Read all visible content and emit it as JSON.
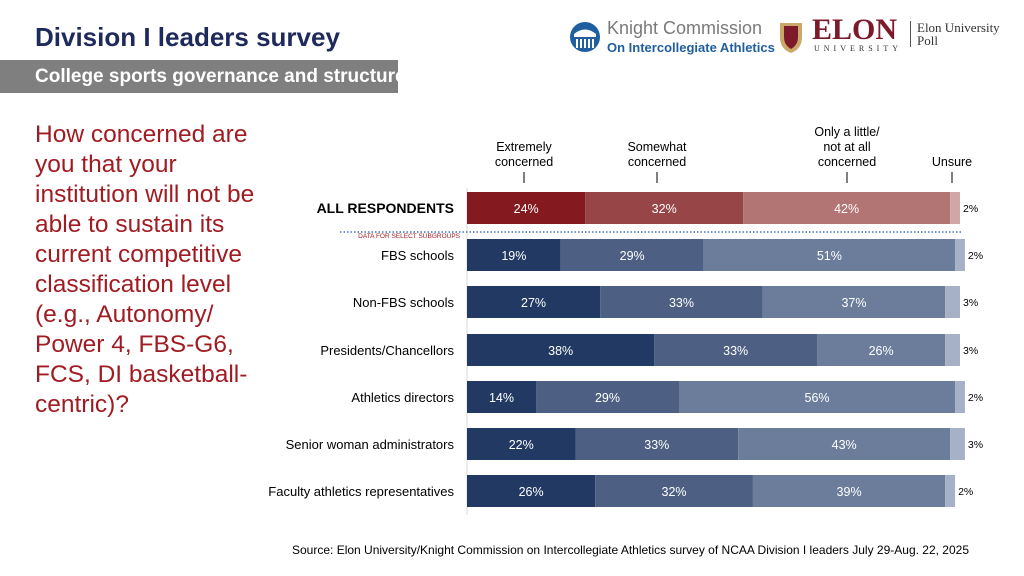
{
  "header": {
    "title": "Division I leaders survey",
    "subtitle": "College sports governance and structure"
  },
  "logos": {
    "knight_line1": "Knight Commission",
    "knight_line2": "On Intercollegiate Athletics",
    "elon_word": "ELON",
    "elon_univ": "UNIVERSITY",
    "elon_poll": "Elon University Poll"
  },
  "question": "How concerned are you that your institution will not be able to sustain its current competitive classification level (e.g., Autonomy/ Power 4, FBS-G6, FCS, DI basketball-centric)?",
  "source": "Source: Elon University/Knight Commission on Intercollegiate Athletics survey of NCAA Division I leaders July 29-Aug. 22, 2025",
  "chart_data": {
    "type": "bar",
    "orientation": "horizontal",
    "stacked": true,
    "unit": "%",
    "legend_placement": "top",
    "series_names": [
      "Extremely concerned",
      "Somewhat concerned",
      "Only a little/ not at all concerned",
      "Unsure"
    ],
    "divider_label": "DATA FOR SELECT SUBGROUPS",
    "categories": [
      "ALL RESPONDENTS",
      "FBS schools",
      "Non-FBS schools",
      "Presidents/Chancellors",
      "Athletics directors",
      "Senior woman administrators",
      "Faculty athletics representatives"
    ],
    "values": [
      [
        24,
        32,
        42,
        2
      ],
      [
        19,
        29,
        51,
        2
      ],
      [
        27,
        33,
        37,
        3
      ],
      [
        38,
        33,
        26,
        3
      ],
      [
        14,
        29,
        56,
        2
      ],
      [
        22,
        33,
        43,
        3
      ],
      [
        26,
        32,
        39,
        2
      ]
    ],
    "colors": {
      "all": [
        "#841a1f",
        "#974547",
        "#b37574",
        "#d0a6a6"
      ],
      "subgroups": [
        "#223a63",
        "#4d6083",
        "#6c7d9b",
        "#a6b0c6"
      ]
    }
  }
}
